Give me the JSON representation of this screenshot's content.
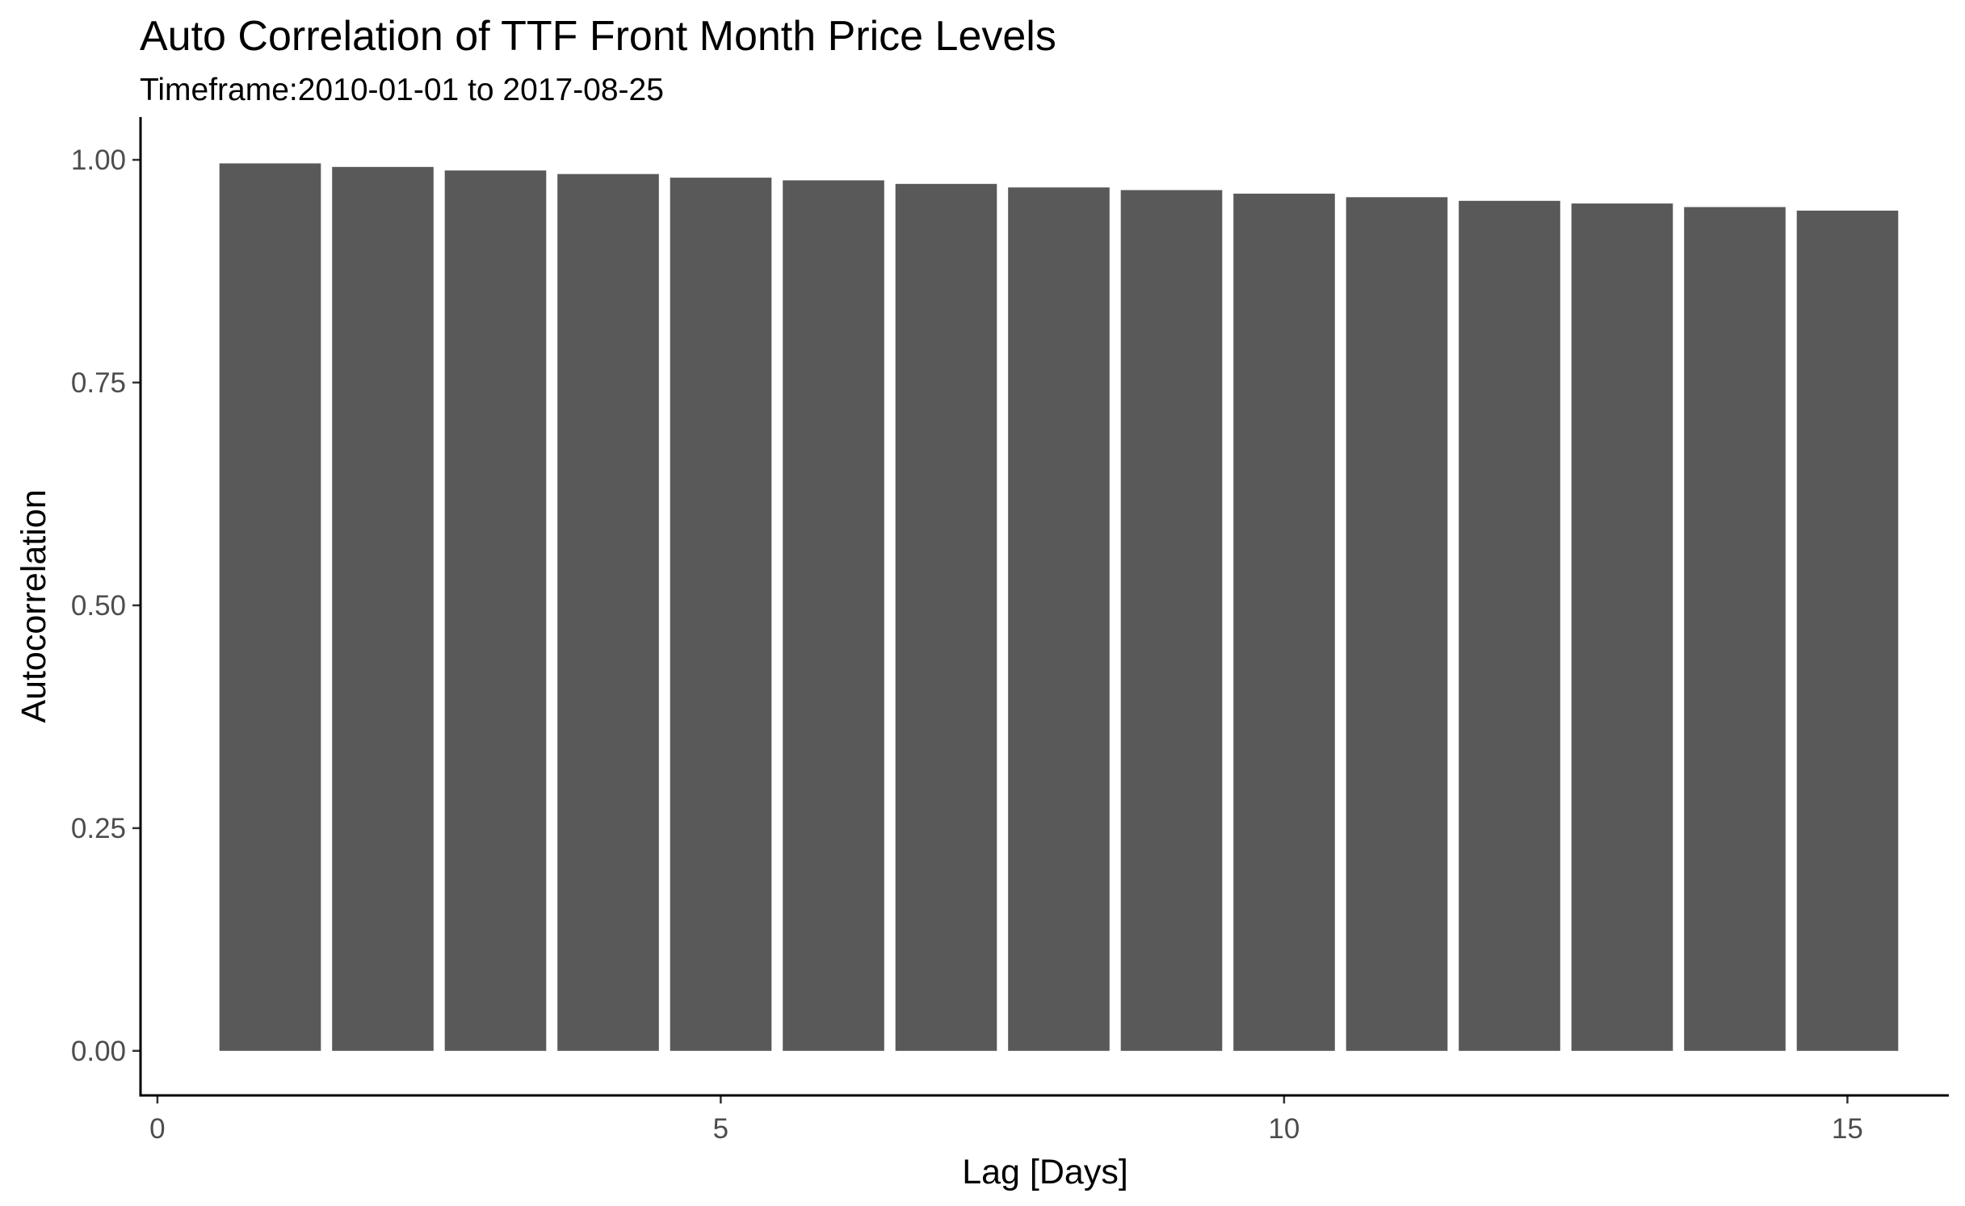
{
  "chart_data": {
    "type": "bar",
    "title": "Auto Correlation of TTF Front Month Price Levels",
    "subtitle": "Timeframe:2010-01-01 to 2017-08-25",
    "xlabel": "Lag [Days]",
    "ylabel": "Autocorrelation",
    "x": [
      1,
      2,
      3,
      4,
      5,
      6,
      7,
      8,
      9,
      10,
      11,
      12,
      13,
      14,
      15
    ],
    "values": [
      0.996,
      0.992,
      0.988,
      0.984,
      0.98,
      0.977,
      0.973,
      0.969,
      0.966,
      0.962,
      0.958,
      0.954,
      0.951,
      0.947,
      0.943
    ],
    "xlim": [
      -0.15,
      15.9
    ],
    "ylim": [
      -0.05,
      1.048
    ],
    "x_ticks": [
      {
        "value": 0,
        "label": "0"
      },
      {
        "value": 5,
        "label": "5"
      },
      {
        "value": 10,
        "label": "10"
      },
      {
        "value": 15,
        "label": "15"
      }
    ],
    "y_ticks": [
      {
        "value": 0,
        "label": "0.00"
      },
      {
        "value": 0.25,
        "label": "0.25"
      },
      {
        "value": 0.5,
        "label": "0.50"
      },
      {
        "value": 0.75,
        "label": "0.75"
      },
      {
        "value": 1.0,
        "label": "1.00"
      }
    ],
    "bar_color": "#595959",
    "grid": false,
    "legend": "none"
  }
}
